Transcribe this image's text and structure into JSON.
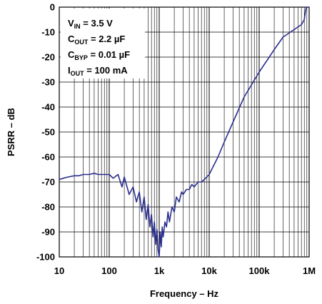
{
  "chart_data": {
    "type": "line",
    "xlabel": "Frequency – Hz",
    "ylabel": "PSRR – dB",
    "x_scale": "log",
    "xlim": [
      10,
      1000000
    ],
    "ylim": [
      -100,
      0
    ],
    "grid": true,
    "x_tick_labels": [
      "10",
      "100",
      "1k",
      "10k",
      "100k",
      "1M"
    ],
    "x_tick_values": [
      10,
      100,
      1000,
      10000,
      100000,
      1000000
    ],
    "y_tick_values": [
      0,
      -10,
      -20,
      -30,
      -40,
      -50,
      -60,
      -70,
      -80,
      -90,
      -100
    ],
    "y_tick_labels": [
      "0",
      "-10",
      "-20",
      "-30",
      "-40",
      "-50",
      "-60",
      "-70",
      "-80",
      "-90",
      "-100"
    ],
    "series_color": "#2b2e8f",
    "series": [
      {
        "x": [
          10,
          12,
          15,
          20,
          25,
          30,
          40,
          50,
          60,
          80,
          100,
          120,
          150,
          180,
          200,
          250,
          300,
          350,
          400,
          450,
          500,
          550,
          600,
          650,
          700,
          750,
          800,
          850,
          900,
          950,
          1000,
          1050,
          1100,
          1150,
          1200,
          1300,
          1400,
          1500,
          1600,
          1800,
          2000,
          2200,
          2500,
          2800,
          3000,
          3500,
          4000,
          4500,
          5000,
          6000,
          7000,
          8000,
          10000,
          15000,
          20000,
          30000,
          50000,
          100000,
          200000,
          300000,
          500000,
          700000,
          800000,
          850000,
          900000,
          950000,
          1000000
        ],
        "values": [
          -69,
          -68.5,
          -68,
          -67.5,
          -67.5,
          -67,
          -67,
          -66.5,
          -67,
          -67,
          -67,
          -68.5,
          -67,
          -72,
          -68,
          -75,
          -72,
          -78,
          -74,
          -82,
          -76,
          -85,
          -79,
          -88,
          -83,
          -92,
          -86,
          -95,
          -89,
          -97,
          -100,
          -90,
          -96,
          -88,
          -92,
          -86,
          -88,
          -82,
          -86,
          -80,
          -82,
          -76,
          -78,
          -74,
          -75,
          -73,
          -73,
          -71,
          -72,
          -70,
          -70,
          -69,
          -67,
          -60,
          -54,
          -46,
          -36,
          -26,
          -17,
          -12,
          -9,
          -7,
          -5,
          -1,
          0,
          0,
          0
        ]
      }
    ],
    "annotations": [
      {
        "main": "V",
        "sub": "IN",
        "rest": " = 3.5 V"
      },
      {
        "main": "C",
        "sub": "OUT",
        "rest": " = 2.2 µF"
      },
      {
        "main": "C",
        "sub": "BYP",
        "rest": " = 0.01 µF"
      },
      {
        "main": "I",
        "sub": "OUT",
        "rest": " = 100 mA"
      }
    ]
  }
}
